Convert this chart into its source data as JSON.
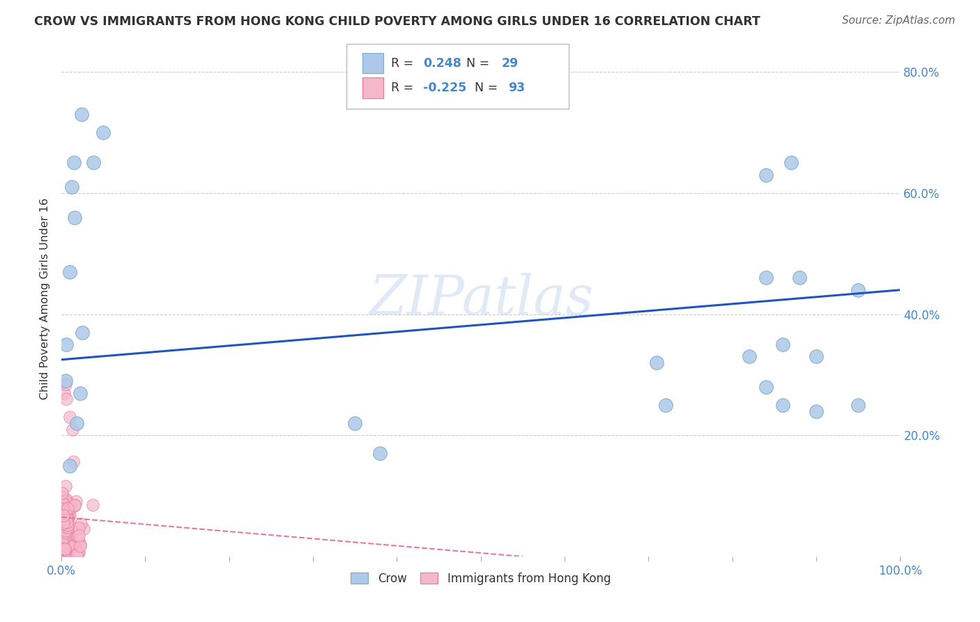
{
  "title": "CROW VS IMMIGRANTS FROM HONG KONG CHILD POVERTY AMONG GIRLS UNDER 16 CORRELATION CHART",
  "source": "Source: ZipAtlas.com",
  "ylabel": "Child Poverty Among Girls Under 16",
  "xlim": [
    0.0,
    1.0
  ],
  "ylim": [
    0.0,
    0.85
  ],
  "ytick_positions": [
    0.0,
    0.2,
    0.4,
    0.6,
    0.8
  ],
  "ytick_labels": [
    "",
    "20.0%",
    "40.0%",
    "60.0%",
    "80.0%"
  ],
  "xtick_positions": [
    0.0,
    0.1,
    0.2,
    0.3,
    0.4,
    0.5,
    0.6,
    0.7,
    0.8,
    0.9,
    1.0
  ],
  "xtick_labels": [
    "0.0%",
    "",
    "",
    "",
    "",
    "",
    "",
    "",
    "",
    "",
    "100.0%"
  ],
  "blue_R": "0.248",
  "blue_N": "29",
  "pink_R": "-0.225",
  "pink_N": "93",
  "crow_color": "#adc8e8",
  "crow_edge_color": "#7aaad0",
  "hk_color": "#f5b8cb",
  "hk_edge_color": "#e8789a",
  "trend_blue_color": "#2255bb",
  "trend_pink_color": "#e8789a",
  "watermark": "ZIPatlas",
  "grid_color": "#cccccc",
  "tick_label_color": "#4488cc",
  "text_color": "#333333",
  "crow_x": [
    0.006,
    0.022,
    0.015,
    0.012,
    0.016,
    0.01,
    0.025,
    0.024,
    0.038,
    0.05,
    0.84,
    0.87,
    0.84,
    0.88,
    0.95,
    0.71,
    0.82,
    0.005,
    0.018,
    0.01,
    0.35,
    0.38,
    0.72,
    0.86,
    0.9,
    0.86,
    0.84,
    0.9,
    0.95
  ],
  "crow_y": [
    0.35,
    0.27,
    0.65,
    0.61,
    0.56,
    0.47,
    0.37,
    0.73,
    0.65,
    0.7,
    0.63,
    0.65,
    0.46,
    0.46,
    0.44,
    0.32,
    0.33,
    0.29,
    0.22,
    0.15,
    0.22,
    0.17,
    0.25,
    0.25,
    0.33,
    0.35,
    0.28,
    0.24,
    0.25
  ],
  "blue_trend_x0": 0.0,
  "blue_trend_y0": 0.325,
  "blue_trend_x1": 1.0,
  "blue_trend_y1": 0.44,
  "pink_trend_x0": 0.0,
  "pink_trend_y0": 0.065,
  "pink_trend_x1": 0.55,
  "pink_trend_y1": 0.0
}
